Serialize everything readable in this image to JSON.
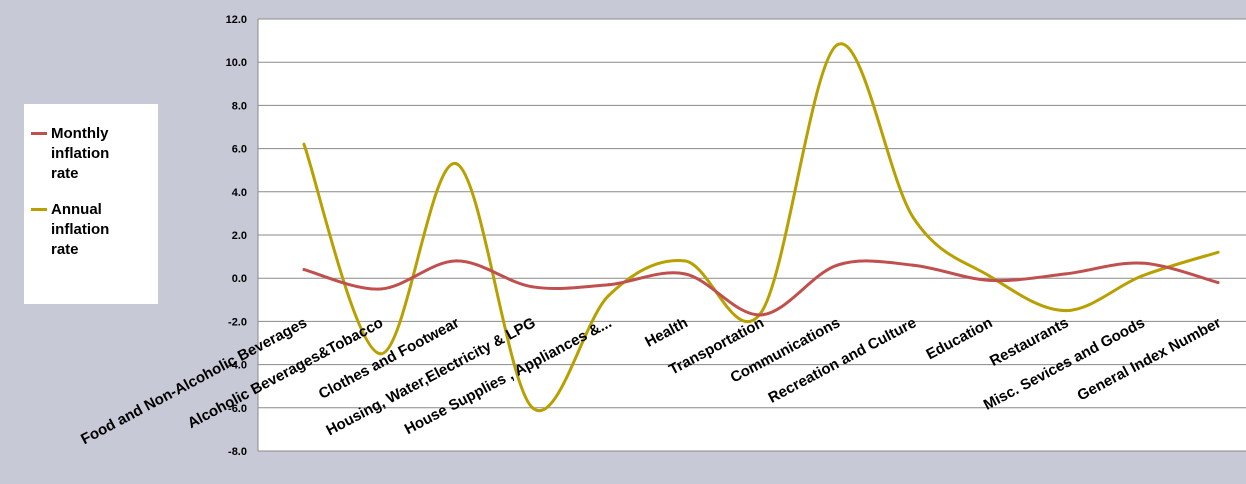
{
  "chart_data": {
    "type": "line",
    "title": "",
    "xlabel": "",
    "ylabel": "",
    "categories": [
      "Food and Non-Alcoholic Beverages",
      "Alcoholic Beverages&Tobacco",
      "Clothes and Footwear",
      "Housing, Water,Electricity & LPG",
      "House Supplies , Appliances &...",
      "Health",
      "Transportation",
      "Communications",
      "Recreation and Culture",
      "Education",
      "Restaurants",
      "Misc. Sevices and Goods",
      "General Index Number"
    ],
    "series": [
      {
        "name": "Monthly inflation rate",
        "color": "#c0504d",
        "values": [
          0.4,
          -0.5,
          0.8,
          -0.4,
          -0.3,
          0.2,
          -1.7,
          0.6,
          0.6,
          -0.1,
          0.2,
          0.7,
          -0.2
        ]
      },
      {
        "name": "Annual inflation rate",
        "color": "#b8a000",
        "values": [
          6.2,
          -3.5,
          5.3,
          -6.0,
          -0.8,
          0.8,
          -1.6,
          10.8,
          2.8,
          0.1,
          -1.5,
          0.1,
          1.2
        ]
      }
    ],
    "ylim": [
      -8,
      12
    ],
    "y_ticks": [
      "12.0",
      "10.0",
      "8.0",
      "6.0",
      "4.0",
      "2.0",
      "0.0",
      "-2.0",
      "-4.0",
      "-6.0",
      "-8.0"
    ],
    "grid": true,
    "legend_position": "left",
    "smooth": true
  },
  "legend": {
    "items": [
      {
        "label": "Monthly\ninflation\nrate",
        "color": "#c0504d"
      },
      {
        "label": "Annual\ninflation\nrate",
        "color": "#b8a000"
      }
    ]
  }
}
